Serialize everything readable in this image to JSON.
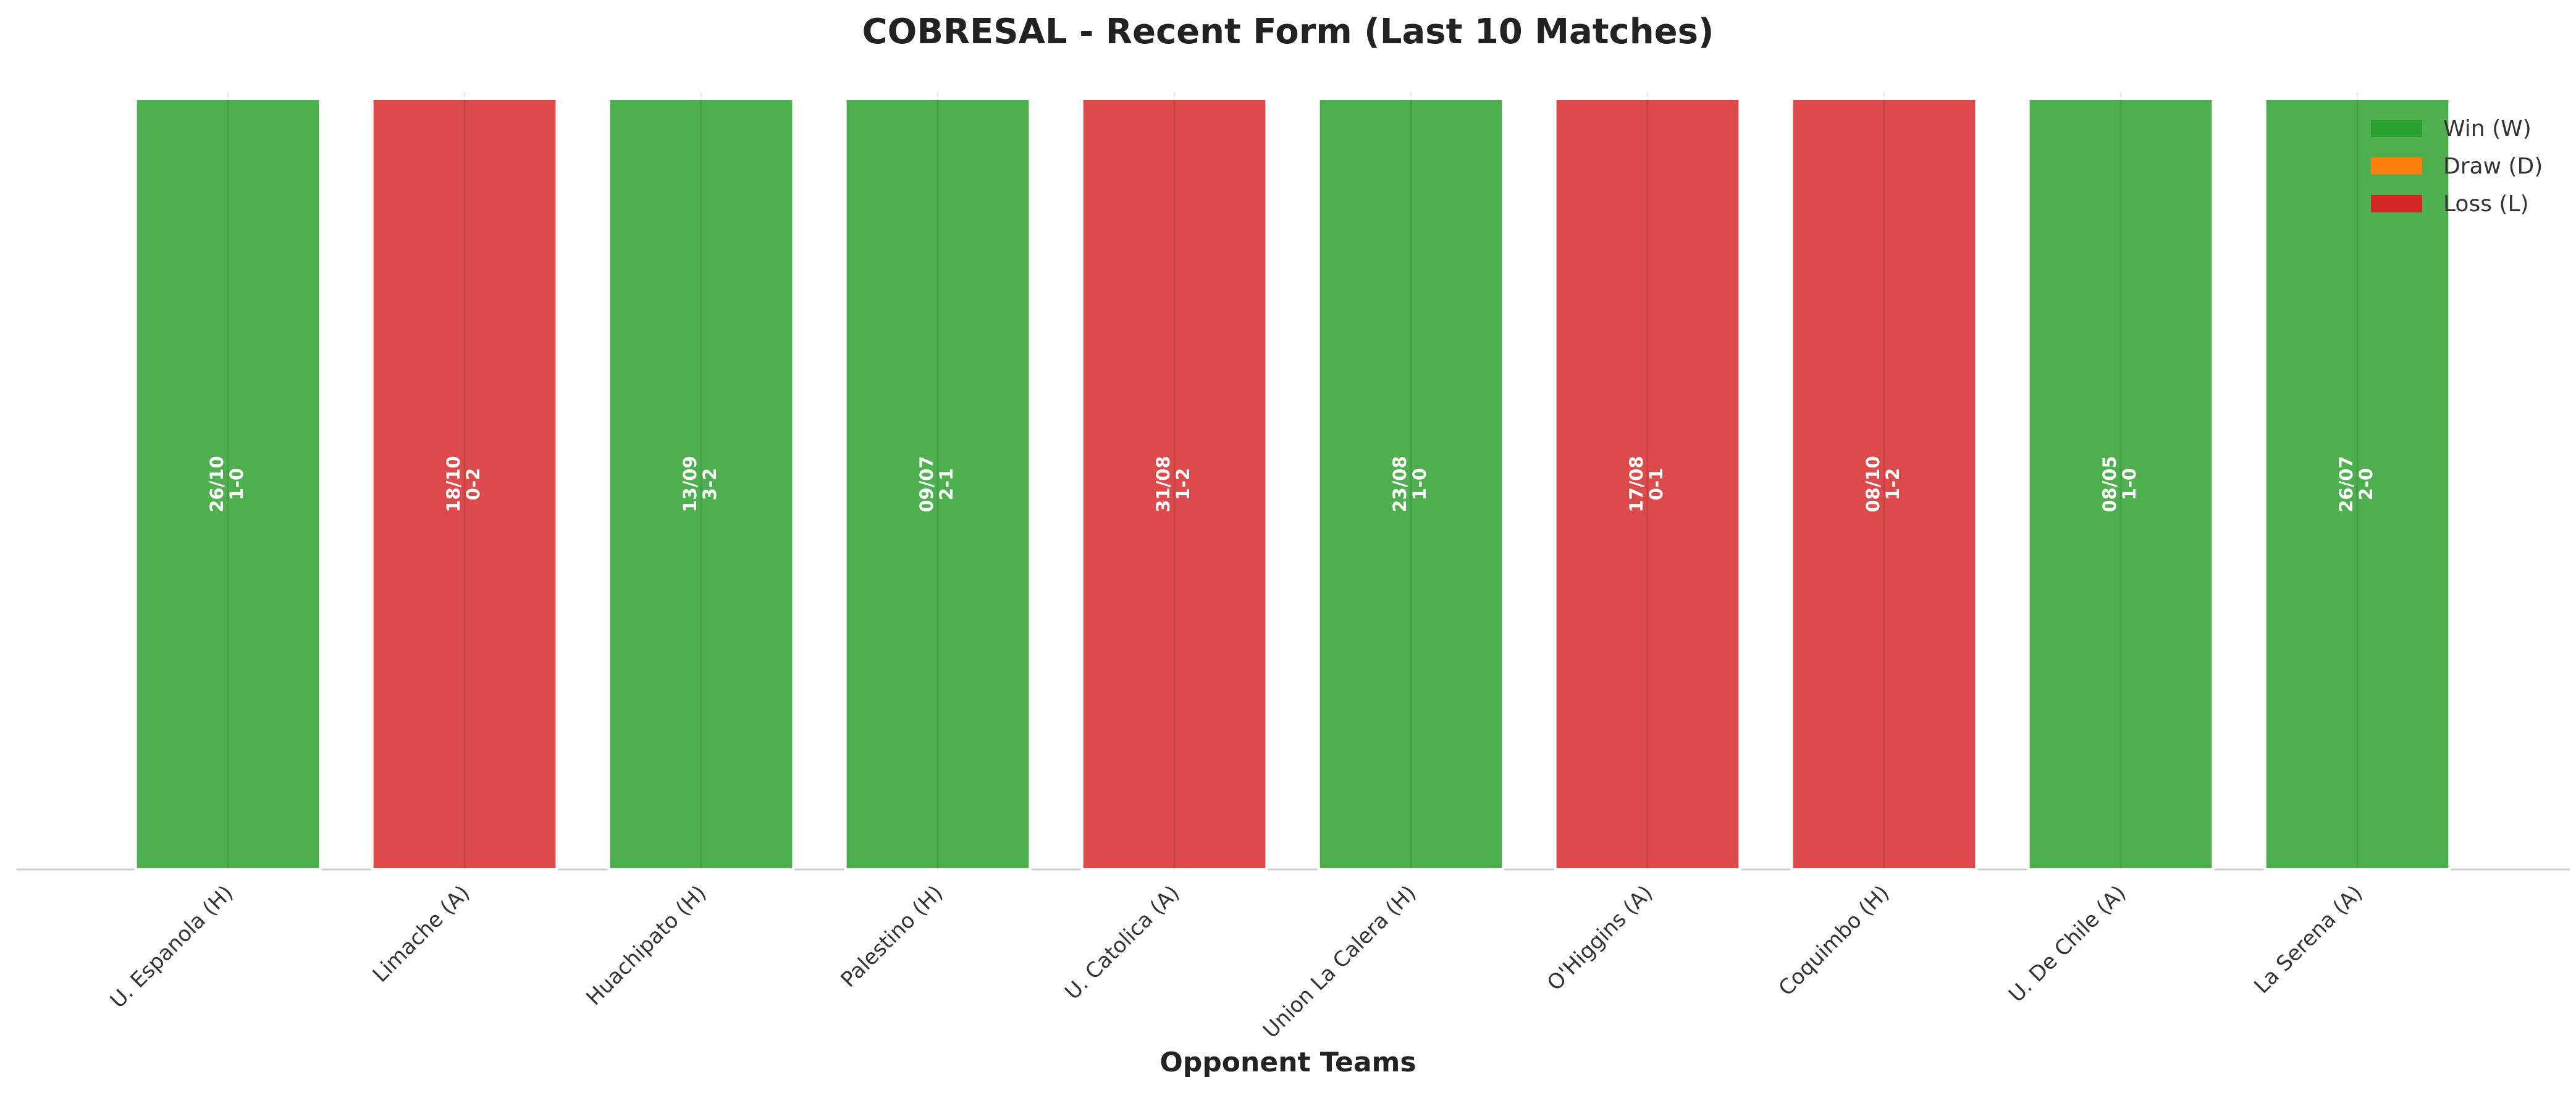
{
  "chart_data": {
    "type": "bar",
    "title": "COBRESAL - Recent Form (Last 10 Matches)",
    "x_label": "Opponent Teams",
    "categories": [
      "U. Espanola (H)",
      "Limache (A)",
      "Huachipato (H)",
      "Palestino (H)",
      "U. Catolica (A)",
      "Union La Calera (H)",
      "O'Higgins (A)",
      "Coquimbo (H)",
      "U. De Chile (A)",
      "La Serena (A)"
    ],
    "values": [
      1,
      1,
      1,
      1,
      1,
      1,
      1,
      1,
      1,
      1
    ],
    "bar_colors": [
      "#2ca02c",
      "#d62728",
      "#2ca02c",
      "#2ca02c",
      "#d62728",
      "#2ca02c",
      "#d62728",
      "#d62728",
      "#2ca02c",
      "#2ca02c"
    ],
    "annotations": [
      {
        "date": "26/10",
        "score": "1-0"
      },
      {
        "date": "18/10",
        "score": "0-2"
      },
      {
        "date": "13/09",
        "score": "3-2"
      },
      {
        "date": "09/07",
        "score": "2-1"
      },
      {
        "date": "31/08",
        "score": "1-2"
      },
      {
        "date": "23/08",
        "score": "1-0"
      },
      {
        "date": "17/08",
        "score": "0-1"
      },
      {
        "date": "08/10",
        "score": "1-2"
      },
      {
        "date": "08/05",
        "score": "1-0"
      },
      {
        "date": "26/07",
        "score": "2-0"
      }
    ],
    "ylim": [
      0,
      1
    ],
    "grid": true,
    "legend_position": "upper right",
    "legend": [
      {
        "label": "Win (W)",
        "color": "#2ca02c"
      },
      {
        "label": "Draw (D)",
        "color": "#ff7f0e"
      },
      {
        "label": "Loss (L)",
        "color": "#d62728"
      }
    ]
  }
}
